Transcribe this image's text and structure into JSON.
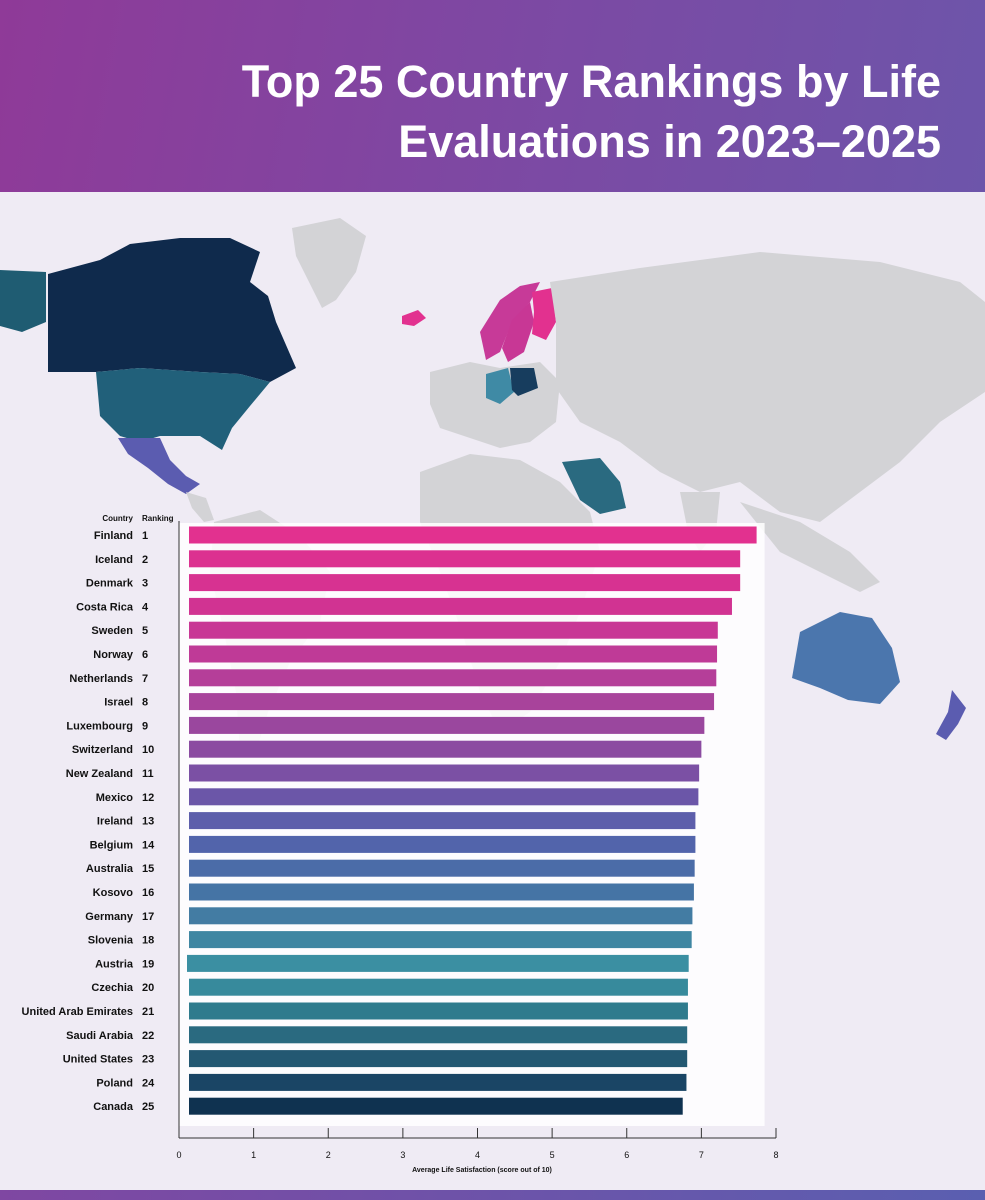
{
  "title": "Top 25 Country Rankings by Life Evaluations in 2023–2025",
  "colors": {
    "header_from": "#8f3a98",
    "header_to": "#6d55aa",
    "land": "#d3d3d6",
    "bar_top": "#e2318f",
    "bar_bottom": "#0b2a4a"
  },
  "chart_data": {
    "type": "bar",
    "orientation": "horizontal",
    "column_headers": {
      "country": "Country",
      "ranking": "Ranking"
    },
    "categories": [
      "Finland",
      "Iceland",
      "Denmark",
      "Costa Rica",
      "Sweden",
      "Norway",
      "Netherlands",
      "Israel",
      "Luxembourg",
      "Switzerland",
      "New Zealand",
      "Mexico",
      "Ireland",
      "Belgium",
      "Australia",
      "Kosovo",
      "Germany",
      "Slovenia",
      "Austria",
      "Czechia",
      "United Arab Emirates",
      "Saudi Arabia",
      "United States",
      "Poland",
      "Canada"
    ],
    "ranks": [
      "1",
      "2",
      "3",
      "4",
      "5",
      "6",
      "7",
      "8",
      "9",
      "10",
      "11",
      "12",
      "13",
      "14",
      "15",
      "16",
      "17",
      "18",
      "19",
      "20",
      "21",
      "22",
      "23",
      "24",
      "25"
    ],
    "values": [
      7.74,
      7.52,
      7.52,
      7.41,
      7.22,
      7.21,
      7.2,
      7.17,
      7.04,
      7.0,
      6.97,
      6.96,
      6.92,
      6.92,
      6.91,
      6.9,
      6.88,
      6.87,
      6.83,
      6.82,
      6.82,
      6.81,
      6.81,
      6.8,
      6.75
    ],
    "bar_colors": [
      "#e2318f",
      "#dc3190",
      "#d73291",
      "#d13392",
      "#c83795",
      "#bf3a97",
      "#b53e99",
      "#a8439b",
      "#9a479e",
      "#8b4ba1",
      "#7b50a4",
      "#6b56a8",
      "#5d5eab",
      "#5264ab",
      "#4b6ca8",
      "#4574a5",
      "#437ca3",
      "#3f86a2",
      "#3b8fa2",
      "#378a9c",
      "#2f7b8d",
      "#2a6a80",
      "#235872",
      "#1a4565",
      "#0f3250"
    ],
    "xlabel": "Average Life Satisfaction (score out of 10)",
    "xlim": [
      0,
      8
    ],
    "xticks": [
      "0",
      "1",
      "2",
      "3",
      "4",
      "5",
      "6",
      "7",
      "8"
    ]
  }
}
